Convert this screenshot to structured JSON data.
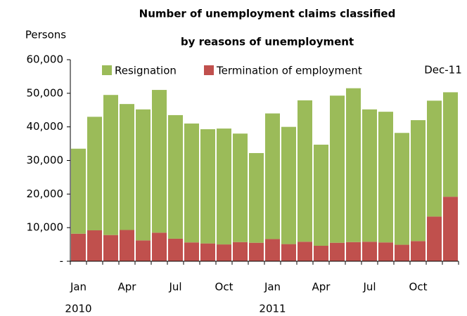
{
  "chart_data": {
    "type": "stacked-bar",
    "title": [
      "Number of unemployment claims classified",
      "by reasons of unemployment"
    ],
    "y_label": "Persons",
    "annotation": "Dec-11",
    "categories": [
      "Jan",
      null,
      null,
      "Apr",
      null,
      null,
      "Jul",
      null,
      null,
      "Oct",
      null,
      null,
      "Jan",
      null,
      null,
      "Apr",
      null,
      null,
      "Jul",
      null,
      null,
      "Oct",
      null,
      null
    ],
    "groups": [
      {
        "label": "2010",
        "categories": 12
      },
      {
        "label": "2011",
        "categories": 12
      }
    ],
    "series": [
      {
        "name": "Resignation",
        "color": "#9bbb59",
        "values": [
          25300,
          33800,
          41700,
          37500,
          39000,
          42500,
          36800,
          35400,
          34000,
          34500,
          32300,
          26700,
          37400,
          34900,
          42100,
          30100,
          43800,
          45800,
          39400,
          38900,
          33300,
          36000,
          34500,
          31100
        ]
      },
      {
        "name": "Termination of employment",
        "color": "#c0504d",
        "values": [
          8200,
          9200,
          7800,
          9300,
          6200,
          8500,
          6700,
          5600,
          5300,
          5000,
          5700,
          5500,
          6600,
          5100,
          5800,
          4600,
          5500,
          5700,
          5800,
          5600,
          4900,
          6000,
          13300,
          19200
        ]
      }
    ],
    "ylim": [
      0,
      60000
    ],
    "yticks": [
      {
        "value": 0,
        "label": "-"
      },
      {
        "value": 10000,
        "label": "10,000"
      },
      {
        "value": 20000,
        "label": "20,000"
      },
      {
        "value": 30000,
        "label": "30,000"
      },
      {
        "value": 40000,
        "label": "40,000"
      },
      {
        "value": 50000,
        "label": "50,000"
      },
      {
        "value": 60000,
        "label": "60,000"
      }
    ],
    "grid": false,
    "legend": "top"
  }
}
